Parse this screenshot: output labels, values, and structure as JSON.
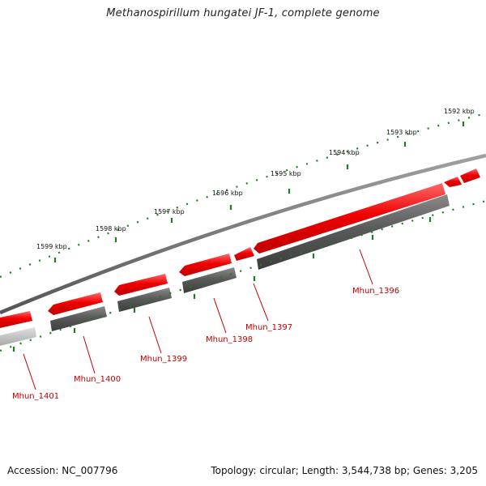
{
  "title": "Methanospirillum hungatei JF-1, complete genome",
  "footer": {
    "accession": "Accession: NC_007796",
    "topology": "Topology: circular; Length: 3,544,738 bp; Genes: 3,205"
  },
  "scale_labels": [
    "1599 kbp",
    "1598 kbp",
    "1597 kbp",
    "1596 kbp",
    "1595 kbp",
    "1594 kbp",
    "1593 kbp",
    "1592 kbp"
  ],
  "genes": [
    "Mhun_1401",
    "Mhun_1400",
    "Mhun_1399",
    "Mhun_1398",
    "Mhun_1397",
    "Mhun_1396"
  ],
  "colors": {
    "gene_red": "#e00000",
    "gene_red_light": "#ff5a5a",
    "protein_gray": "#555555",
    "protein_gray_light": "#b8b8b8",
    "backbone": "#777777",
    "tick_green": "#1a7f1a",
    "label_red": "#c00000"
  }
}
